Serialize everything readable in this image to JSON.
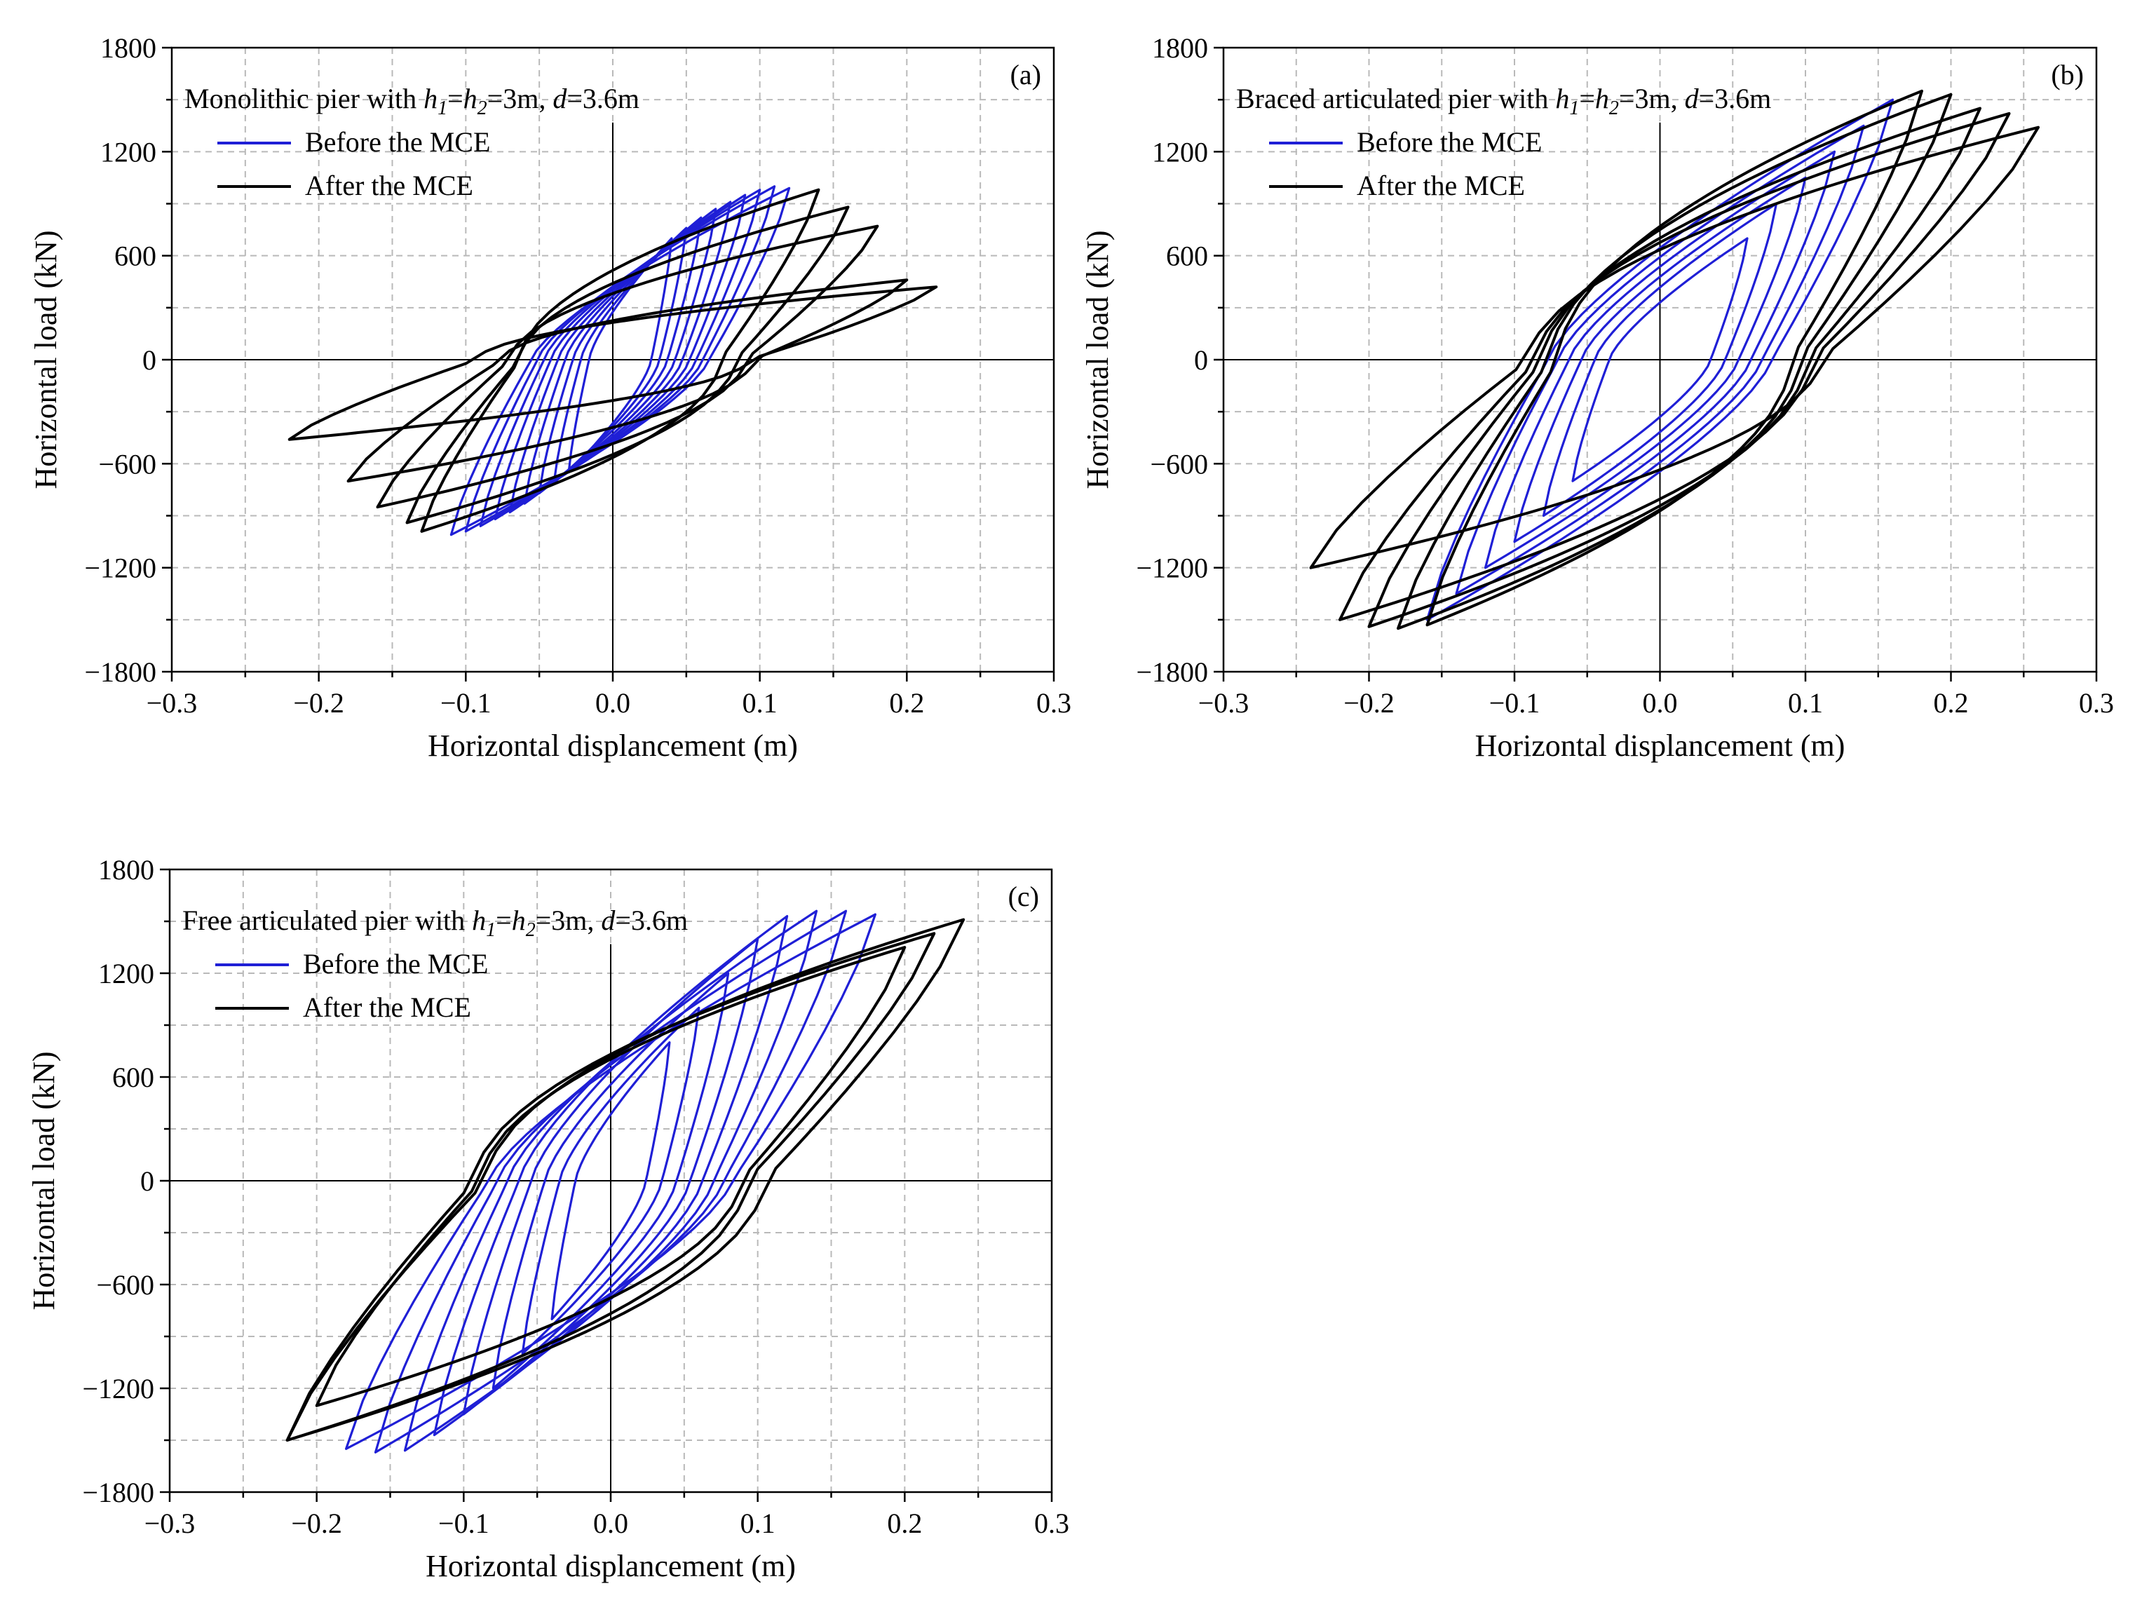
{
  "colors": {
    "before": "#1f1fd6",
    "after": "#000000",
    "grid": "#b9b9b9"
  },
  "chart_data": [
    {
      "id": "a",
      "type": "line",
      "tag": "(a)",
      "title": {
        "prefix": "Monolithic  pier with ",
        "h1": "h",
        "h1sub": "1",
        "eq1": "=",
        "h2": "h",
        "h2sub": "2",
        "mid": "=3m, ",
        "d": "d",
        "suffix": "=3.6m"
      },
      "xlabel": "Horizontal displancement (m)",
      "ylabel": "Horizontal load (kN)",
      "xlim": [
        -0.3,
        0.3
      ],
      "ylim": [
        -1800,
        1800
      ],
      "xticks": [
        -0.3,
        -0.2,
        -0.1,
        0.0,
        0.1,
        0.2,
        0.3
      ],
      "xticklabels": [
        "−0.3",
        "−0.2",
        "−0.1",
        "0.0",
        "0.1",
        "0.2",
        "0.3"
      ],
      "yticks": [
        -1800,
        -1200,
        -600,
        0,
        600,
        1200,
        1800
      ],
      "yticklabels": [
        "−1800",
        "−1200",
        "−600",
        "0",
        "600",
        "1200",
        "1800"
      ],
      "legend": [
        "Before the MCE",
        "After the MCE"
      ],
      "series": [
        {
          "name": "Before the MCE",
          "kind": "before",
          "loops": [
            {
              "xmax": 0.04,
              "ymax": 700,
              "xmin": -0.03,
              "ymin": -650
            },
            {
              "xmax": 0.05,
              "ymax": 760,
              "xmin": -0.04,
              "ymin": -710
            },
            {
              "xmax": 0.06,
              "ymax": 820,
              "xmin": -0.05,
              "ymin": -770
            },
            {
              "xmax": 0.07,
              "ymax": 870,
              "xmin": -0.06,
              "ymin": -830
            },
            {
              "xmax": 0.08,
              "ymax": 910,
              "xmin": -0.07,
              "ymin": -880
            },
            {
              "xmax": 0.09,
              "ymax": 950,
              "xmin": -0.08,
              "ymin": -920
            },
            {
              "xmax": 0.1,
              "ymax": 980,
              "xmin": -0.09,
              "ymin": -960
            },
            {
              "xmax": 0.11,
              "ymax": 1000,
              "xmin": -0.1,
              "ymin": -990
            },
            {
              "xmax": 0.12,
              "ymax": 990,
              "xmin": -0.11,
              "ymin": -1010
            }
          ]
        },
        {
          "name": "After the MCE",
          "kind": "after",
          "loops": [
            {
              "xmax": 0.14,
              "ymax": 980,
              "xmin": -0.13,
              "ymin": -990
            },
            {
              "xmax": 0.16,
              "ymax": 880,
              "xmin": -0.14,
              "ymin": -940
            },
            {
              "xmax": 0.18,
              "ymax": 770,
              "xmin": -0.16,
              "ymin": -850
            },
            {
              "xmax": 0.2,
              "ymax": 460,
              "xmin": -0.18,
              "ymin": -700
            },
            {
              "xmax": 0.22,
              "ymax": 420,
              "xmin": -0.22,
              "ymin": -460
            }
          ]
        }
      ]
    },
    {
      "id": "b",
      "type": "line",
      "tag": "(b)",
      "title": {
        "prefix": "Braced articulated  pier with ",
        "h1": "h",
        "h1sub": "1",
        "eq1": "=",
        "h2": "h",
        "h2sub": "2",
        "mid": "=3m, ",
        "d": "d",
        "suffix": "=3.6m"
      },
      "xlabel": "Horizontal displancement (m)",
      "ylabel": "Horizontal load (kN)",
      "xlim": [
        -0.3,
        0.3
      ],
      "ylim": [
        -1800,
        1800
      ],
      "xticks": [
        -0.3,
        -0.2,
        -0.1,
        0.0,
        0.1,
        0.2,
        0.3
      ],
      "xticklabels": [
        "−0.3",
        "−0.2",
        "−0.1",
        "0.0",
        "0.1",
        "0.2",
        "0.3"
      ],
      "yticks": [
        -1800,
        -1200,
        -600,
        0,
        600,
        1200,
        1800
      ],
      "yticklabels": [
        "−1800",
        "−1200",
        "−600",
        "0",
        "600",
        "1200",
        "1800"
      ],
      "legend": [
        "Before the MCE",
        "After the MCE"
      ],
      "series": [
        {
          "name": "Before the MCE",
          "kind": "before",
          "loops": [
            {
              "xmax": 0.06,
              "ymax": 700,
              "xmin": -0.06,
              "ymin": -700
            },
            {
              "xmax": 0.08,
              "ymax": 900,
              "xmin": -0.08,
              "ymin": -900
            },
            {
              "xmax": 0.1,
              "ymax": 1050,
              "xmin": -0.1,
              "ymin": -1050
            },
            {
              "xmax": 0.12,
              "ymax": 1200,
              "xmin": -0.12,
              "ymin": -1200
            },
            {
              "xmax": 0.14,
              "ymax": 1350,
              "xmin": -0.14,
              "ymin": -1350
            },
            {
              "xmax": 0.16,
              "ymax": 1500,
              "xmin": -0.16,
              "ymin": -1500
            }
          ]
        },
        {
          "name": "After the MCE",
          "kind": "after",
          "loops": [
            {
              "xmax": 0.18,
              "ymax": 1550,
              "xmin": -0.16,
              "ymin": -1530
            },
            {
              "xmax": 0.2,
              "ymax": 1530,
              "xmin": -0.18,
              "ymin": -1550
            },
            {
              "xmax": 0.22,
              "ymax": 1450,
              "xmin": -0.2,
              "ymin": -1540
            },
            {
              "xmax": 0.24,
              "ymax": 1420,
              "xmin": -0.22,
              "ymin": -1500
            },
            {
              "xmax": 0.26,
              "ymax": 1340,
              "xmin": -0.24,
              "ymin": -1200
            }
          ]
        }
      ]
    },
    {
      "id": "c",
      "type": "line",
      "tag": "(c)",
      "title": {
        "prefix": "Free articulated  pier with ",
        "h1": "h",
        "h1sub": "1",
        "eq1": "=",
        "h2": "h",
        "h2sub": "2",
        "mid": "=3m, ",
        "d": "d",
        "suffix": "=3.6m"
      },
      "xlabel": "Horizontal displancement (m)",
      "ylabel": "Horizontal load (kN)",
      "xlim": [
        -0.3,
        0.3
      ],
      "ylim": [
        -1800,
        1800
      ],
      "xticks": [
        -0.3,
        -0.2,
        -0.1,
        0.0,
        0.1,
        0.2,
        0.3
      ],
      "xticklabels": [
        "−0.3",
        "−0.2",
        "−0.1",
        "0.0",
        "0.1",
        "0.2",
        "0.3"
      ],
      "yticks": [
        -1800,
        -1200,
        -600,
        0,
        600,
        1200,
        1800
      ],
      "yticklabels": [
        "−1800",
        "−1200",
        "−600",
        "0",
        "600",
        "1200",
        "1800"
      ],
      "legend": [
        "Before the MCE",
        "After the MCE"
      ],
      "series": [
        {
          "name": "Before the MCE",
          "kind": "before",
          "loops": [
            {
              "xmax": 0.04,
              "ymax": 800,
              "xmin": -0.04,
              "ymin": -800
            },
            {
              "xmax": 0.06,
              "ymax": 1000,
              "xmin": -0.06,
              "ymin": -1000
            },
            {
              "xmax": 0.08,
              "ymax": 1200,
              "xmin": -0.08,
              "ymin": -1200
            },
            {
              "xmax": 0.1,
              "ymax": 1400,
              "xmin": -0.1,
              "ymin": -1350
            },
            {
              "xmax": 0.12,
              "ymax": 1530,
              "xmin": -0.12,
              "ymin": -1470
            },
            {
              "xmax": 0.14,
              "ymax": 1560,
              "xmin": -0.14,
              "ymin": -1560
            },
            {
              "xmax": 0.16,
              "ymax": 1560,
              "xmin": -0.16,
              "ymin": -1570
            },
            {
              "xmax": 0.18,
              "ymax": 1540,
              "xmin": -0.18,
              "ymin": -1550
            }
          ]
        },
        {
          "name": "After the MCE",
          "kind": "after",
          "loops": [
            {
              "xmax": 0.2,
              "ymax": 1350,
              "xmin": -0.2,
              "ymin": -1300
            },
            {
              "xmax": 0.22,
              "ymax": 1430,
              "xmin": -0.22,
              "ymin": -1500
            },
            {
              "xmax": 0.24,
              "ymax": 1510,
              "xmin": -0.22,
              "ymin": -1500
            }
          ]
        }
      ]
    }
  ]
}
